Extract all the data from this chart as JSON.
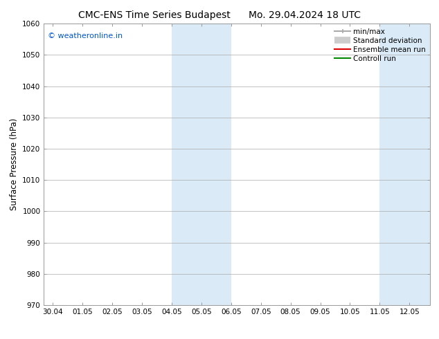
{
  "title_left": "CMC-ENS Time Series Budapest",
  "title_right": "Mo. 29.04.2024 18 UTC",
  "ylabel": "Surface Pressure (hPa)",
  "ylim": [
    970,
    1060
  ],
  "yticks": [
    970,
    980,
    990,
    1000,
    1010,
    1020,
    1030,
    1040,
    1050,
    1060
  ],
  "xtick_labels": [
    "30.04",
    "01.05",
    "02.05",
    "03.05",
    "04.05",
    "05.05",
    "06.05",
    "07.05",
    "08.05",
    "09.05",
    "10.05",
    "11.05",
    "12.05"
  ],
  "xtick_positions": [
    0,
    1,
    2,
    3,
    4,
    5,
    6,
    7,
    8,
    9,
    10,
    11,
    12
  ],
  "xlim": [
    -0.3,
    12.7
  ],
  "shaded_regions": [
    {
      "xmin": 4,
      "xmax": 6,
      "color": "#daeaf7"
    },
    {
      "xmin": 11,
      "xmax": 12.7,
      "color": "#daeaf7"
    }
  ],
  "watermark_text": "© weatheronline.in",
  "watermark_color": "#0055cc",
  "watermark_fontsize": 8,
  "legend_entries": [
    {
      "label": "min/max",
      "color": "#aaaaaa",
      "lw": 1.5,
      "ls": "-",
      "type": "line_caps"
    },
    {
      "label": "Standard deviation",
      "color": "#cccccc",
      "lw": 7,
      "ls": "-",
      "type": "thick"
    },
    {
      "label": "Ensemble mean run",
      "color": "#dd0000",
      "lw": 1.5,
      "ls": "-",
      "type": "line"
    },
    {
      "label": "Controll run",
      "color": "#008800",
      "lw": 1.5,
      "ls": "-",
      "type": "line"
    }
  ],
  "background_color": "#ffffff",
  "grid_color": "#aaaaaa",
  "title_fontsize": 10,
  "tick_fontsize": 7.5,
  "ylabel_fontsize": 8.5,
  "legend_fontsize": 7.5
}
